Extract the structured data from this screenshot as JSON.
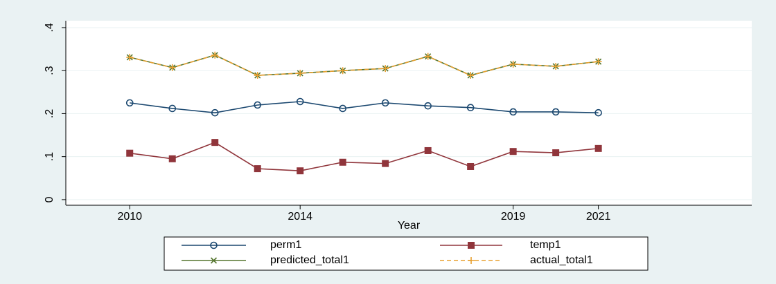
{
  "chart_data": {
    "type": "line",
    "x": [
      2010,
      2011,
      2012,
      2013,
      2014,
      2015,
      2016,
      2017,
      2018,
      2019,
      2020,
      2021
    ],
    "xlabel": "Year",
    "series": [
      {
        "name": "perm1",
        "color": "#1a476f",
        "marker": "circle",
        "values": [
          0.225,
          0.212,
          0.202,
          0.22,
          0.228,
          0.212,
          0.225,
          0.218,
          0.214,
          0.204,
          0.204,
          0.202
        ]
      },
      {
        "name": "temp1",
        "color": "#90353b",
        "marker": "square",
        "values": [
          0.108,
          0.095,
          0.133,
          0.072,
          0.067,
          0.087,
          0.084,
          0.114,
          0.077,
          0.112,
          0.109,
          0.119
        ]
      },
      {
        "name": "predicted_total1",
        "color": "#55752f",
        "marker": "x",
        "values": [
          0.331,
          0.307,
          0.336,
          0.289,
          0.294,
          0.3,
          0.305,
          0.333,
          0.289,
          0.315,
          0.31,
          0.321
        ]
      },
      {
        "name": "actual_total1",
        "color": "#e8a030",
        "marker": "plus",
        "dashed": true,
        "values": [
          0.331,
          0.307,
          0.336,
          0.289,
          0.294,
          0.3,
          0.305,
          0.333,
          0.289,
          0.315,
          0.31,
          0.321
        ]
      }
    ],
    "xlim": [
      2008.5,
      2024.6
    ],
    "xticks": [
      2010,
      2014,
      2019,
      2021
    ],
    "ylim": [
      -0.013,
      0.416
    ],
    "yticks": [
      0,
      {
        "value": 0.1,
        "label": ".1"
      },
      {
        "value": 0.2,
        "label": ".2"
      },
      {
        "value": 0.3,
        "label": ".3"
      },
      {
        "value": 0.4,
        "label": ".4"
      }
    ],
    "grid": true,
    "legend": "bottom"
  }
}
